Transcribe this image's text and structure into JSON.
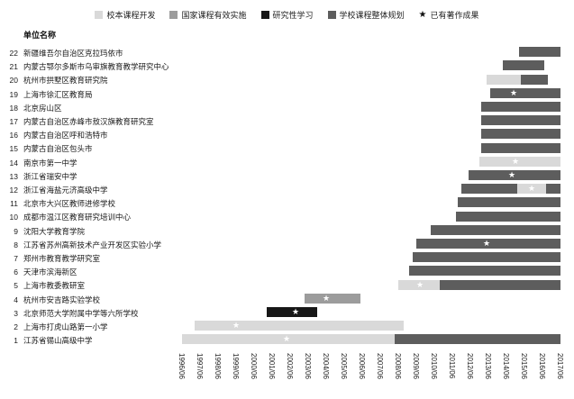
{
  "legend": {
    "items": [
      {
        "label": "校本课程开发",
        "color": "#d9d9d9",
        "marker": "box"
      },
      {
        "label": "国家课程有效实施",
        "color": "#9c9c9c",
        "marker": "box"
      },
      {
        "label": "研究性学习",
        "color": "#171717",
        "marker": "box"
      },
      {
        "label": "学校课程整体规划",
        "color": "#5d5d5d",
        "marker": "box"
      },
      {
        "label": "已有著作成果",
        "symbol": "★",
        "marker": "star"
      }
    ]
  },
  "chart_data": {
    "type": "gantt",
    "title": "",
    "ylabel": "单位名称",
    "xlabel": "",
    "x_range": [
      0,
      21
    ],
    "x_ticks": [
      "1996/06",
      "1997/06",
      "1998/06",
      "1999/06",
      "2000/06",
      "2001/06",
      "2002/06",
      "2003/06",
      "2004/06",
      "2005/06",
      "2006/06",
      "2007/06",
      "2008/06",
      "2009/06",
      "2010/06",
      "2011/06",
      "2012/06",
      "2013/06",
      "2014/06",
      "2015/06",
      "2016/06",
      "2017/06"
    ],
    "categories": {
      "校本课程开发": "#d9d9d9",
      "国家课程有效实施": "#9c9c9c",
      "研究性学习": "#171717",
      "学校课程整体规划": "#5d5d5d"
    },
    "star_meaning": "已有著作成果",
    "grid": false,
    "legend_position": "top",
    "rows": [
      {
        "num": 22,
        "unit": "新疆维吾尔自治区克拉玛依市",
        "segments": [
          {
            "c": "学校课程整体规划",
            "s": 18.7,
            "e": 21.0
          }
        ],
        "stars": []
      },
      {
        "num": 21,
        "unit": "内蒙古鄂尔多斯市乌审旗教育教学研究中心",
        "segments": [
          {
            "c": "学校课程整体规划",
            "s": 17.8,
            "e": 20.1
          }
        ],
        "stars": []
      },
      {
        "num": 20,
        "unit": "杭州市拱墅区教育研究院",
        "segments": [
          {
            "c": "校本课程开发",
            "s": 16.9,
            "e": 18.8
          },
          {
            "c": "学校课程整体规划",
            "s": 18.8,
            "e": 20.3
          }
        ],
        "stars": []
      },
      {
        "num": 19,
        "unit": "上海市徐汇区教育局",
        "segments": [
          {
            "c": "学校课程整体规划",
            "s": 17.1,
            "e": 21.0
          }
        ],
        "stars": [
          18.4
        ]
      },
      {
        "num": 18,
        "unit": "北京房山区",
        "segments": [
          {
            "c": "学校课程整体规划",
            "s": 16.6,
            "e": 21.0
          }
        ],
        "stars": []
      },
      {
        "num": 17,
        "unit": "内蒙古自治区赤峰市敖汉旗教育研究室",
        "segments": [
          {
            "c": "学校课程整体规划",
            "s": 16.6,
            "e": 21.0
          }
        ],
        "stars": []
      },
      {
        "num": 16,
        "unit": "内蒙古自治区呼和浩特市",
        "segments": [
          {
            "c": "学校课程整体规划",
            "s": 16.6,
            "e": 21.0
          }
        ],
        "stars": []
      },
      {
        "num": 15,
        "unit": "内蒙古自治区包头市",
        "segments": [
          {
            "c": "学校课程整体规划",
            "s": 16.6,
            "e": 21.0
          }
        ],
        "stars": []
      },
      {
        "num": 14,
        "unit": "南京市第一中学",
        "segments": [
          {
            "c": "校本课程开发",
            "s": 16.5,
            "e": 21.0
          }
        ],
        "stars": [
          18.5
        ]
      },
      {
        "num": 13,
        "unit": "浙江省瑞安中学",
        "segments": [
          {
            "c": "学校课程整体规划",
            "s": 15.9,
            "e": 21.0
          }
        ],
        "stars": [
          18.3
        ]
      },
      {
        "num": 12,
        "unit": "浙江省海盐元济高级中学",
        "segments": [
          {
            "c": "学校课程整体规划",
            "s": 15.5,
            "e": 18.6
          },
          {
            "c": "校本课程开发",
            "s": 18.6,
            "e": 20.2
          },
          {
            "c": "学校课程整体规划",
            "s": 20.2,
            "e": 21.0
          }
        ],
        "stars": [
          19.4
        ]
      },
      {
        "num": 11,
        "unit": "北京市大兴区教师进修学校",
        "segments": [
          {
            "c": "学校课程整体规划",
            "s": 15.3,
            "e": 21.0
          }
        ],
        "stars": []
      },
      {
        "num": 10,
        "unit": "成都市温江区教育研究培训中心",
        "segments": [
          {
            "c": "学校课程整体规划",
            "s": 15.2,
            "e": 21.0
          }
        ],
        "stars": []
      },
      {
        "num": 9,
        "unit": "沈阳大学教育学院",
        "segments": [
          {
            "c": "学校课程整体规划",
            "s": 13.8,
            "e": 21.0
          }
        ],
        "stars": []
      },
      {
        "num": 8,
        "unit": "江苏省苏州高新技术产业开发区实验小学",
        "segments": [
          {
            "c": "学校课程整体规划",
            "s": 13.0,
            "e": 21.0
          }
        ],
        "stars": [
          16.9
        ]
      },
      {
        "num": 7,
        "unit": "郑州市教育教学研究室",
        "segments": [
          {
            "c": "学校课程整体规划",
            "s": 12.8,
            "e": 21.0
          }
        ],
        "stars": []
      },
      {
        "num": 6,
        "unit": "天津市滨海新区",
        "segments": [
          {
            "c": "学校课程整体规划",
            "s": 12.6,
            "e": 21.0
          }
        ],
        "stars": []
      },
      {
        "num": 5,
        "unit": "上海市教委教研室",
        "segments": [
          {
            "c": "校本课程开发",
            "s": 12.0,
            "e": 14.3
          },
          {
            "c": "学校课程整体规划",
            "s": 14.3,
            "e": 21.0
          }
        ],
        "stars": [
          13.2
        ]
      },
      {
        "num": 4,
        "unit": "杭州市安吉路实验学校",
        "segments": [
          {
            "c": "国家课程有效实施",
            "s": 6.8,
            "e": 9.9
          }
        ],
        "stars": [
          8.0
        ]
      },
      {
        "num": 3,
        "unit": "北京师范大学附属中学等六所学校",
        "segments": [
          {
            "c": "研究性学习",
            "s": 4.7,
            "e": 7.5
          }
        ],
        "stars": [
          6.3
        ]
      },
      {
        "num": 2,
        "unit": "上海市打虎山路第一小学",
        "segments": [
          {
            "c": "校本课程开发",
            "s": 0.7,
            "e": 12.3
          }
        ],
        "stars": [
          3.0
        ]
      },
      {
        "num": 1,
        "unit": "江苏省锡山高级中学",
        "segments": [
          {
            "c": "校本课程开发",
            "s": 0.0,
            "e": 11.8
          },
          {
            "c": "学校课程整体规划",
            "s": 11.8,
            "e": 21.0
          }
        ],
        "stars": [
          5.8
        ]
      }
    ]
  }
}
